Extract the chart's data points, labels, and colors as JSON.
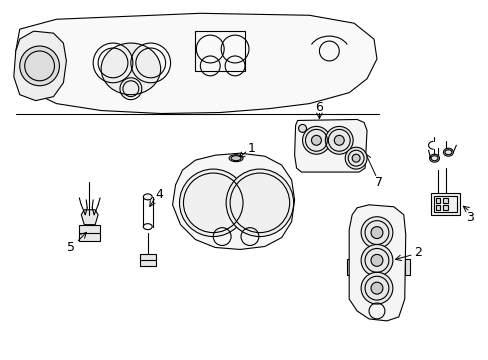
{
  "background_color": "#ffffff",
  "line_color": "#000000",
  "line_width": 0.8,
  "figsize": [
    4.89,
    3.6
  ],
  "dpi": 100
}
